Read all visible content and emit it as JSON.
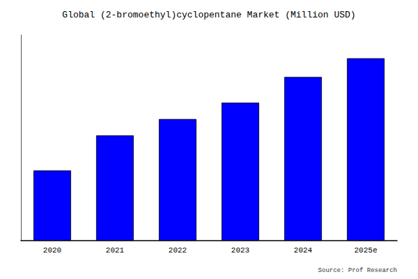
{
  "chart_data": {
    "type": "bar",
    "title": "Global (2-bromoethyl)cyclopentane Market (Million USD)",
    "categories": [
      "2020",
      "2021",
      "2022",
      "2023",
      "2024",
      "2025e"
    ],
    "values": [
      3.0,
      4.5,
      5.2,
      5.9,
      7.0,
      7.8
    ],
    "color": "#0000ff",
    "ylim": [
      0,
      8.8
    ],
    "yticks": [],
    "grid": false,
    "tick_labels": "x",
    "annotation": "Source: Prof Research"
  }
}
